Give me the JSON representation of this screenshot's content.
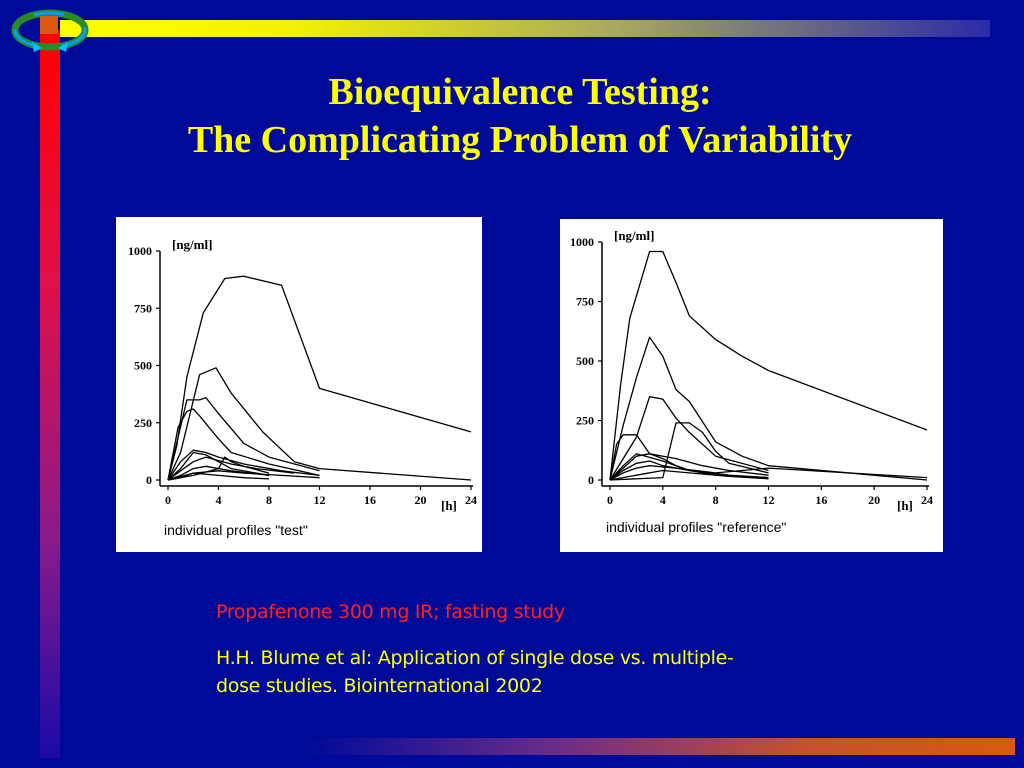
{
  "slide": {
    "title_line1": "Bioequivalence Testing:",
    "title_line2": "The Complicating Problem of  Variability",
    "study_note": "Propafenone 300 mg IR; fasting study",
    "reference_line1": "H.H. Blume et al: Application of single dose vs. multiple-",
    "reference_line2": "dose studies. Biointernational 2002",
    "colors": {
      "background": "#000a99",
      "title": "#ffff00",
      "study_note": "#ff2020",
      "reference": "#ffff00"
    },
    "logo_icon": "circular-arrows-icon"
  },
  "chart_data": [
    {
      "type": "line",
      "caption": "individual profiles \"test\"",
      "ylabel": "[ng/ml]",
      "xlabel": "[h]",
      "xlim": [
        0,
        24
      ],
      "ylim": [
        0,
        1000
      ],
      "xticks": [
        "0",
        "4",
        "8",
        "12",
        "16",
        "20",
        "24"
      ],
      "yticks": [
        "0",
        "250",
        "500",
        "750",
        "1000"
      ],
      "series": [
        {
          "x": [
            0,
            0.7,
            1.5,
            2.8,
            4.5,
            6,
            9,
            12,
            24
          ],
          "y": [
            0,
            150,
            450,
            730,
            880,
            890,
            850,
            400,
            210
          ]
        },
        {
          "x": [
            0,
            1,
            2.5,
            3.8,
            5,
            7.5,
            10,
            12,
            24
          ],
          "y": [
            0,
            120,
            460,
            490,
            380,
            210,
            80,
            50,
            0
          ]
        },
        {
          "x": [
            0,
            1.5,
            2.5,
            3,
            4,
            6,
            8,
            12
          ],
          "y": [
            0,
            350,
            350,
            360,
            290,
            160,
            100,
            40
          ]
        },
        {
          "x": [
            0,
            0.8,
            1.5,
            2,
            2.5,
            4,
            5,
            8,
            12
          ],
          "y": [
            0,
            230,
            300,
            310,
            280,
            180,
            120,
            70,
            20
          ]
        },
        {
          "x": [
            0,
            1,
            2,
            3,
            4,
            6,
            9,
            12
          ],
          "y": [
            0,
            80,
            130,
            120,
            100,
            70,
            40,
            20
          ]
        },
        {
          "x": [
            0,
            1,
            2,
            3,
            4,
            5,
            8
          ],
          "y": [
            0,
            50,
            120,
            110,
            80,
            50,
            20
          ]
        },
        {
          "x": [
            0,
            1,
            2,
            3,
            5,
            7,
            10
          ],
          "y": [
            0,
            40,
            80,
            100,
            70,
            50,
            30
          ]
        },
        {
          "x": [
            0,
            1,
            2,
            3,
            5,
            8
          ],
          "y": [
            0,
            20,
            50,
            60,
            40,
            20
          ]
        },
        {
          "x": [
            0,
            1,
            2,
            4,
            6,
            9,
            12
          ],
          "y": [
            0,
            10,
            30,
            40,
            30,
            20,
            10
          ]
        },
        {
          "x": [
            0,
            2,
            4,
            4.5,
            5,
            6,
            8
          ],
          "y": [
            0,
            20,
            50,
            100,
            80,
            60,
            30
          ]
        },
        {
          "x": [
            0,
            2,
            4,
            6,
            8
          ],
          "y": [
            0,
            30,
            20,
            10,
            5
          ]
        }
      ]
    },
    {
      "type": "line",
      "caption": "individual profiles \"reference\"",
      "ylabel": "[ng/ml]",
      "xlabel": "[h]",
      "xlim": [
        0,
        24
      ],
      "ylim": [
        0,
        1000
      ],
      "xticks": [
        "0",
        "4",
        "8",
        "12",
        "16",
        "20",
        "24"
      ],
      "yticks": [
        "0",
        "250",
        "500",
        "750",
        "1000"
      ],
      "series": [
        {
          "x": [
            0,
            0.8,
            1.5,
            3,
            4,
            5,
            6,
            8,
            10,
            12,
            24
          ],
          "y": [
            0,
            400,
            680,
            960,
            960,
            830,
            690,
            590,
            520,
            460,
            210
          ]
        },
        {
          "x": [
            0,
            1,
            2,
            3,
            4,
            5,
            6,
            8,
            10,
            12,
            24
          ],
          "y": [
            0,
            230,
            430,
            600,
            520,
            380,
            330,
            160,
            100,
            60,
            0
          ]
        },
        {
          "x": [
            0,
            1,
            2,
            3,
            4,
            5,
            6,
            8,
            12
          ],
          "y": [
            0,
            90,
            180,
            350,
            340,
            260,
            200,
            100,
            40
          ]
        },
        {
          "x": [
            0,
            0.5,
            1,
            2,
            3,
            4,
            5,
            6,
            8,
            12
          ],
          "y": [
            0,
            150,
            190,
            190,
            110,
            90,
            60,
            40,
            20,
            10
          ]
        },
        {
          "x": [
            0,
            4,
            5,
            6,
            7,
            8,
            9,
            12
          ],
          "y": [
            0,
            10,
            240,
            240,
            200,
            120,
            70,
            30
          ]
        },
        {
          "x": [
            0,
            1,
            2,
            3,
            5,
            7,
            9,
            12
          ],
          "y": [
            0,
            50,
            100,
            110,
            90,
            60,
            40,
            20
          ]
        },
        {
          "x": [
            0,
            1,
            2,
            3,
            4,
            6,
            9,
            12
          ],
          "y": [
            0,
            40,
            70,
            80,
            60,
            40,
            20,
            10
          ]
        },
        {
          "x": [
            0,
            1,
            2,
            3,
            5,
            8,
            12,
            24
          ],
          "y": [
            0,
            30,
            50,
            60,
            50,
            30,
            50,
            10
          ]
        },
        {
          "x": [
            0,
            2,
            4,
            6,
            9,
            12
          ],
          "y": [
            0,
            20,
            40,
            30,
            15,
            5
          ]
        },
        {
          "x": [
            0,
            1,
            2,
            4,
            6,
            9
          ],
          "y": [
            0,
            60,
            110,
            80,
            40,
            20
          ]
        }
      ]
    }
  ]
}
